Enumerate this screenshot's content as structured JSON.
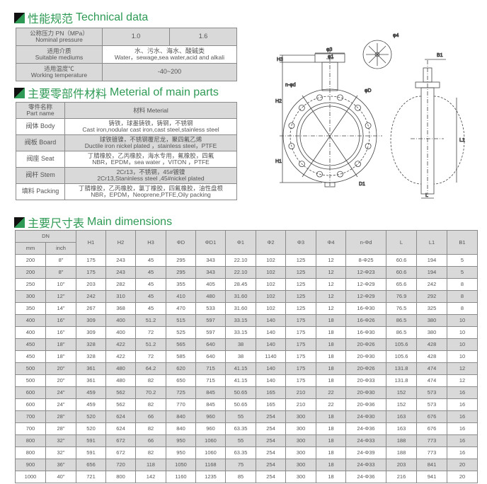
{
  "tech": {
    "title_cn": "性能规范",
    "title_en": "Technical data",
    "rows": [
      {
        "label_cn": "公称压力 PN（MPa）",
        "label_en": "Nominal   pressure",
        "values": [
          "1.0",
          "1.6"
        ]
      },
      {
        "label_cn": "适用介质",
        "label_en": "Suitable mediums",
        "value_cn": "水、污水、海水、酸碱类",
        "value_en": "Water，sewage,sea water,acid and alkali"
      },
      {
        "label_cn": "适用温度℃",
        "label_en": "Working temperature",
        "value": "-40~200"
      }
    ]
  },
  "parts": {
    "title_cn": "主要零部件材料",
    "title_en": "Meterial of  main  parts",
    "header": {
      "part_cn": "零件名称",
      "part_en": "Part name",
      "material": "材料 Meterial"
    },
    "rows": [
      {
        "part": "阀体 Body",
        "cn": "铸铁，球墨铸铁，铸钢，不锈钢",
        "en": "Cast iron,nodular    cast iron,cast steel,stainless steel"
      },
      {
        "part": "阀板 Board",
        "cn": "球铁镀镍，不锈钢覆尼龙，聚四氟乙烯",
        "en": "Ductile iron nickel plated  ，stainless steel，PTFE"
      },
      {
        "part": "阀座 Seat",
        "cn": "丁腈橡胶，乙丙橡胶，海水专用，氟橡胶，四氟",
        "en": "NBR，EPDM，sea water  ，VITON  ，PTFE"
      },
      {
        "part": "阀杆 Stem",
        "cn": "2Cr13，不锈钢，45#镀镍",
        "en": "2Cr13,Staninless steel ,45#nickel plated"
      },
      {
        "part": "填料 Packing",
        "cn": "丁腈橡胶，乙丙橡胶，氯丁橡胶，四氟橡胶，油性盘根",
        "en": "NBR，EPDM，Neoprene,PTFE,Oily packing"
      }
    ]
  },
  "drawing": {
    "labels": [
      "φ4",
      "φ3",
      "φ1",
      "B1",
      "H3",
      "H2",
      "H1",
      "n-φd",
      "φD",
      "D1",
      "L1",
      "L"
    ]
  },
  "dims": {
    "title_cn": "主要尺寸表",
    "title_en": "Main dimensions",
    "dn_label": "DN",
    "mm_label": "mm",
    "inch_label": "inch",
    "columns": [
      "H1",
      "H2",
      "H3",
      "ΦD",
      "ΦD1",
      "Φ1",
      "Φ2",
      "Φ3",
      "Φ4",
      "n-Φd",
      "L",
      "L1",
      "B1"
    ],
    "rows": [
      [
        "200",
        "8\"",
        "175",
        "243",
        "45",
        "295",
        "343",
        "22.10",
        "102",
        "125",
        "12",
        "8-Φ25",
        "60.6",
        "194",
        "5"
      ],
      [
        "200",
        "8\"",
        "175",
        "243",
        "45",
        "295",
        "343",
        "22.10",
        "102",
        "125",
        "12",
        "12-Φ23",
        "60.6",
        "194",
        "5"
      ],
      [
        "250",
        "10\"",
        "203",
        "282",
        "45",
        "355",
        "405",
        "28.45",
        "102",
        "125",
        "12",
        "12-Φ29",
        "65.6",
        "242",
        "8"
      ],
      [
        "300",
        "12\"",
        "242",
        "310",
        "45",
        "410",
        "480",
        "31.60",
        "102",
        "125",
        "12",
        "12-Φ29",
        "76.9",
        "292",
        "8"
      ],
      [
        "350",
        "14\"",
        "267",
        "368",
        "45",
        "470",
        "533",
        "31.60",
        "102",
        "125",
        "12",
        "16-Φ30",
        "76.5",
        "325",
        "8"
      ],
      [
        "400",
        "16\"",
        "309",
        "400",
        "51.2",
        "515",
        "597",
        "33.15",
        "140",
        "175",
        "18",
        "16-Φ26",
        "86.5",
        "380",
        "10"
      ],
      [
        "400",
        "16\"",
        "309",
        "400",
        "72",
        "525",
        "597",
        "33.15",
        "140",
        "175",
        "18",
        "16-Φ30",
        "86.5",
        "380",
        "10"
      ],
      [
        "450",
        "18\"",
        "328",
        "422",
        "51.2",
        "565",
        "640",
        "38",
        "140",
        "175",
        "18",
        "20-Φ26",
        "105.6",
        "428",
        "10"
      ],
      [
        "450",
        "18\"",
        "328",
        "422",
        "72",
        "585",
        "640",
        "38",
        "1140",
        "175",
        "18",
        "20-Φ30",
        "105.6",
        "428",
        "10"
      ],
      [
        "500",
        "20\"",
        "361",
        "480",
        "64.2",
        "620",
        "715",
        "41.15",
        "140",
        "175",
        "18",
        "20-Φ26",
        "131.8",
        "474",
        "12"
      ],
      [
        "500",
        "20\"",
        "361",
        "480",
        "82",
        "650",
        "715",
        "41.15",
        "140",
        "175",
        "18",
        "20-Φ33",
        "131.8",
        "474",
        "12"
      ],
      [
        "600",
        "24\"",
        "459",
        "562",
        "70.2",
        "725",
        "845",
        "50.65",
        "165",
        "210",
        "22",
        "20-Φ30",
        "152",
        "573",
        "16"
      ],
      [
        "600",
        "24\"",
        "459",
        "562",
        "82",
        "770",
        "845",
        "50.65",
        "165",
        "210",
        "22",
        "20-Φ36",
        "152",
        "573",
        "16"
      ],
      [
        "700",
        "28\"",
        "520",
        "624",
        "66",
        "840",
        "960",
        "55",
        "254",
        "300",
        "18",
        "24-Φ30",
        "163",
        "676",
        "16"
      ],
      [
        "700",
        "28\"",
        "520",
        "624",
        "82",
        "840",
        "960",
        "63.35",
        "254",
        "300",
        "18",
        "24-Φ36",
        "163",
        "676",
        "16"
      ],
      [
        "800",
        "32\"",
        "591",
        "672",
        "66",
        "950",
        "1060",
        "55",
        "254",
        "300",
        "18",
        "24-Φ33",
        "188",
        "773",
        "16"
      ],
      [
        "800",
        "32\"",
        "591",
        "672",
        "82",
        "950",
        "1060",
        "63.35",
        "254",
        "300",
        "18",
        "24-Φ39",
        "188",
        "773",
        "16"
      ],
      [
        "900",
        "36\"",
        "656",
        "720",
        "118",
        "1050",
        "1168",
        "75",
        "254",
        "300",
        "18",
        "24-Φ33",
        "203",
        "841",
        "20"
      ],
      [
        "1000",
        "40\"",
        "721",
        "800",
        "142",
        "1160",
        "1235",
        "85",
        "254",
        "300",
        "18",
        "24-Φ36",
        "216",
        "941",
        "20"
      ]
    ]
  },
  "colors": {
    "title_green": "#2f9a55",
    "row_gray": "#d9d9d9",
    "border": "#8a8a8a"
  }
}
